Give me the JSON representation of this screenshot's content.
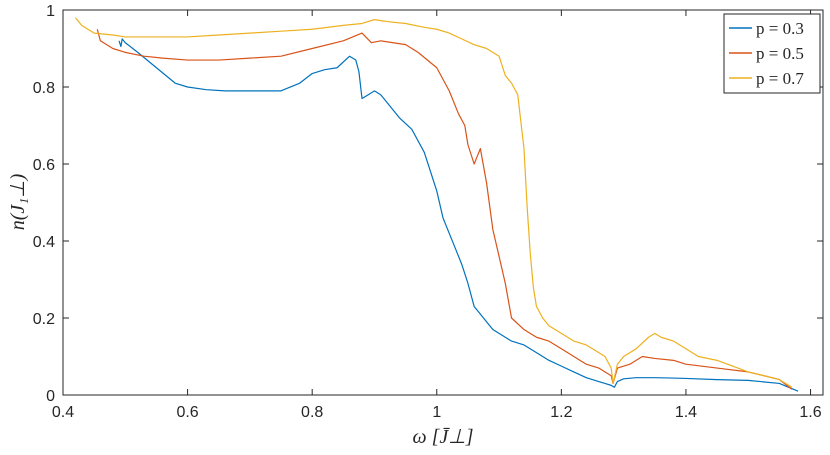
{
  "chart_data": {
    "type": "line",
    "title": "",
    "xlabel": "ω [J̄⊥]",
    "ylabel": "n(J₁⊥)",
    "xlim": [
      0.4,
      1.62
    ],
    "ylim": [
      0,
      1
    ],
    "x_ticks": [
      0.4,
      0.6,
      0.8,
      1.0,
      1.2,
      1.4,
      1.6
    ],
    "x_tick_labels": [
      "0.4",
      "0.6",
      "0.8",
      "1",
      "1.2",
      "1.4",
      "1.6"
    ],
    "y_ticks": [
      0,
      0.2,
      0.4,
      0.6,
      0.8,
      1
    ],
    "y_tick_labels": [
      "0",
      "0.2",
      "0.4",
      "0.6",
      "0.8",
      "1"
    ],
    "grid": false,
    "legend_position": "top-right",
    "series": [
      {
        "name": "p = 0.3",
        "color": "#0072BD",
        "x": [
          0.49,
          0.493,
          0.495,
          0.5,
          0.52,
          0.55,
          0.58,
          0.6,
          0.63,
          0.66,
          0.7,
          0.73,
          0.75,
          0.78,
          0.8,
          0.82,
          0.84,
          0.86,
          0.87,
          0.875,
          0.88,
          0.89,
          0.9,
          0.91,
          0.92,
          0.94,
          0.96,
          0.98,
          1.0,
          1.01,
          1.02,
          1.03,
          1.04,
          1.05,
          1.06,
          1.07,
          1.08,
          1.09,
          1.1,
          1.12,
          1.14,
          1.16,
          1.18,
          1.2,
          1.22,
          1.24,
          1.26,
          1.27,
          1.28,
          1.285,
          1.29,
          1.3,
          1.32,
          1.35,
          1.38,
          1.4,
          1.45,
          1.5,
          1.55,
          1.58
        ],
        "y": [
          0.92,
          0.905,
          0.925,
          0.915,
          0.89,
          0.85,
          0.81,
          0.8,
          0.793,
          0.79,
          0.79,
          0.79,
          0.79,
          0.81,
          0.835,
          0.845,
          0.85,
          0.88,
          0.87,
          0.84,
          0.77,
          0.78,
          0.79,
          0.78,
          0.76,
          0.72,
          0.69,
          0.63,
          0.53,
          0.46,
          0.42,
          0.38,
          0.34,
          0.29,
          0.23,
          0.21,
          0.19,
          0.17,
          0.16,
          0.14,
          0.13,
          0.11,
          0.09,
          0.075,
          0.06,
          0.045,
          0.035,
          0.03,
          0.025,
          0.02,
          0.035,
          0.042,
          0.045,
          0.045,
          0.044,
          0.043,
          0.04,
          0.038,
          0.03,
          0.01
        ]
      },
      {
        "name": "p = 0.5",
        "color": "#D95319",
        "x": [
          0.455,
          0.46,
          0.48,
          0.5,
          0.53,
          0.56,
          0.6,
          0.65,
          0.7,
          0.75,
          0.8,
          0.85,
          0.88,
          0.895,
          0.91,
          0.93,
          0.95,
          0.97,
          1.0,
          1.02,
          1.035,
          1.045,
          1.05,
          1.06,
          1.065,
          1.07,
          1.08,
          1.09,
          1.1,
          1.11,
          1.12,
          1.14,
          1.16,
          1.18,
          1.2,
          1.22,
          1.24,
          1.26,
          1.27,
          1.28,
          1.283,
          1.29,
          1.31,
          1.33,
          1.35,
          1.38,
          1.4,
          1.45,
          1.5,
          1.55,
          1.57
        ],
        "y": [
          0.95,
          0.92,
          0.9,
          0.89,
          0.88,
          0.875,
          0.87,
          0.87,
          0.875,
          0.88,
          0.9,
          0.92,
          0.94,
          0.915,
          0.92,
          0.915,
          0.91,
          0.89,
          0.85,
          0.79,
          0.73,
          0.7,
          0.65,
          0.6,
          0.62,
          0.64,
          0.55,
          0.43,
          0.36,
          0.29,
          0.2,
          0.17,
          0.15,
          0.14,
          0.12,
          0.1,
          0.08,
          0.07,
          0.06,
          0.05,
          0.03,
          0.07,
          0.08,
          0.1,
          0.095,
          0.09,
          0.08,
          0.07,
          0.06,
          0.04,
          0.015
        ]
      },
      {
        "name": "p = 0.7",
        "color": "#EDB120",
        "x": [
          0.42,
          0.43,
          0.45,
          0.48,
          0.5,
          0.55,
          0.6,
          0.65,
          0.7,
          0.75,
          0.8,
          0.85,
          0.88,
          0.9,
          0.92,
          0.95,
          0.98,
          1.0,
          1.02,
          1.04,
          1.06,
          1.08,
          1.1,
          1.11,
          1.12,
          1.13,
          1.14,
          1.145,
          1.15,
          1.155,
          1.16,
          1.17,
          1.18,
          1.2,
          1.22,
          1.24,
          1.26,
          1.27,
          1.28,
          1.283,
          1.29,
          1.3,
          1.32,
          1.34,
          1.35,
          1.36,
          1.38,
          1.4,
          1.42,
          1.45,
          1.5,
          1.55,
          1.57
        ],
        "y": [
          0.98,
          0.96,
          0.94,
          0.935,
          0.93,
          0.93,
          0.93,
          0.935,
          0.94,
          0.945,
          0.95,
          0.96,
          0.965,
          0.975,
          0.97,
          0.965,
          0.955,
          0.95,
          0.94,
          0.925,
          0.91,
          0.9,
          0.88,
          0.83,
          0.81,
          0.78,
          0.64,
          0.49,
          0.37,
          0.28,
          0.23,
          0.2,
          0.18,
          0.16,
          0.14,
          0.13,
          0.11,
          0.1,
          0.07,
          0.03,
          0.08,
          0.1,
          0.12,
          0.15,
          0.16,
          0.15,
          0.14,
          0.12,
          0.1,
          0.09,
          0.06,
          0.04,
          0.02
        ]
      }
    ]
  }
}
